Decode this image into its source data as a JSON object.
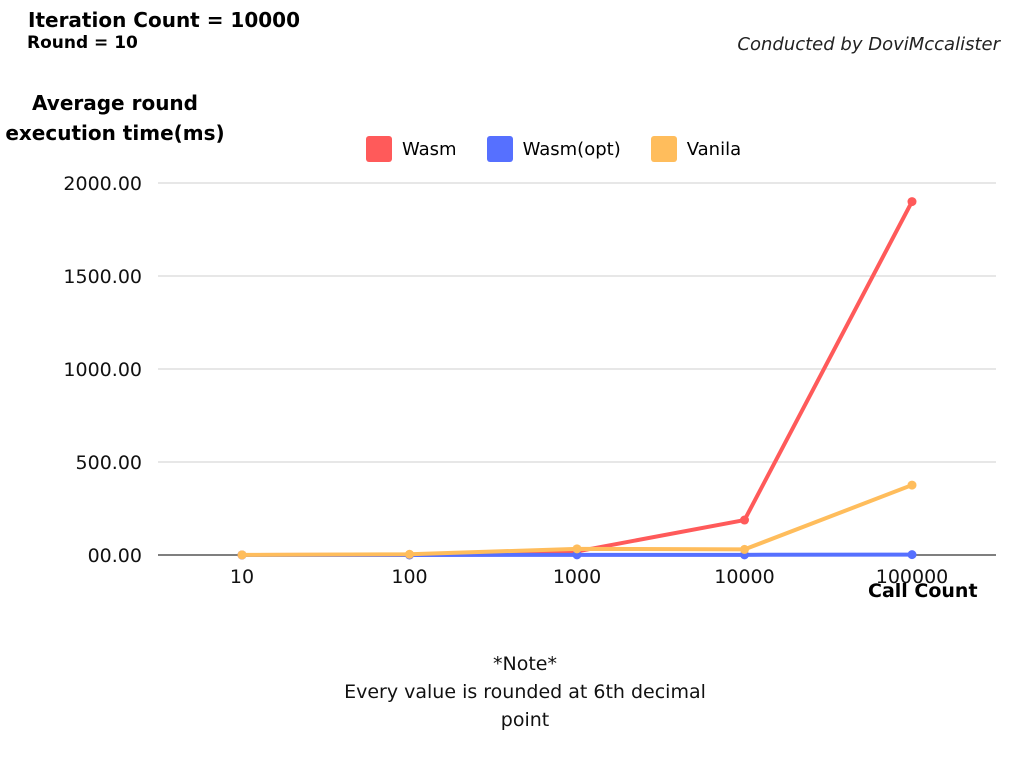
{
  "header": {
    "iteration_count": "Iteration Count = 10000",
    "round": "Round = 10",
    "conducted_by": "Conducted by DoviMccalister"
  },
  "note": {
    "title": "*Note*",
    "text": "Every value is rounded at 6th decimal point"
  },
  "chart_data": {
    "type": "line",
    "title": "",
    "ylabel": "Average round execution time(ms)",
    "xlabel": "Call Count",
    "categories": [
      "10",
      "100",
      "1000",
      "10000",
      "100000"
    ],
    "ylim": [
      0,
      2000
    ],
    "yticks": [
      "00.00",
      "500.00",
      "1000.00",
      "1500.00",
      "2000.00"
    ],
    "grid": true,
    "legend_position": "top-center",
    "series": [
      {
        "name": "Wasm",
        "color": "#FF5A5A",
        "values": [
          0.2,
          1.9,
          19,
          188,
          1900
        ]
      },
      {
        "name": "Wasm(opt)",
        "color": "#5670FF",
        "values": [
          0.01,
          0.1,
          1,
          1,
          2
        ]
      },
      {
        "name": "Vanila",
        "color": "#FFBD5C",
        "values": [
          0.4,
          4,
          33,
          30,
          376
        ]
      }
    ]
  }
}
